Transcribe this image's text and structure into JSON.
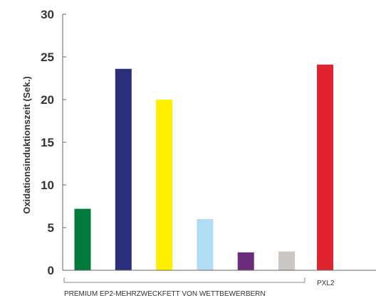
{
  "chart_data": {
    "type": "bar",
    "title": "",
    "ylabel": "Oxidationsinduktionszeit (Sek.)",
    "ylim": [
      0,
      30
    ],
    "yticks": [
      0,
      5,
      10,
      15,
      20,
      25,
      30
    ],
    "grid": false,
    "categories": [
      "",
      "",
      "",
      "",
      "",
      "",
      ""
    ],
    "values": [
      7.2,
      23.6,
      20.0,
      6.0,
      2.1,
      2.2,
      24.1
    ],
    "colors": [
      "#007b3b",
      "#2b2f7b",
      "#fff000",
      "#b0dcf5",
      "#6c2c7c",
      "#cbc7c4",
      "#e0242f"
    ],
    "groups": [
      {
        "label": "PREMIUM EP2-MEHRZWECKFETT VON WETTBEWERBERN",
        "from": 0,
        "to": 5
      },
      {
        "label": "PXL2",
        "from": 6,
        "to": 6
      }
    ]
  }
}
